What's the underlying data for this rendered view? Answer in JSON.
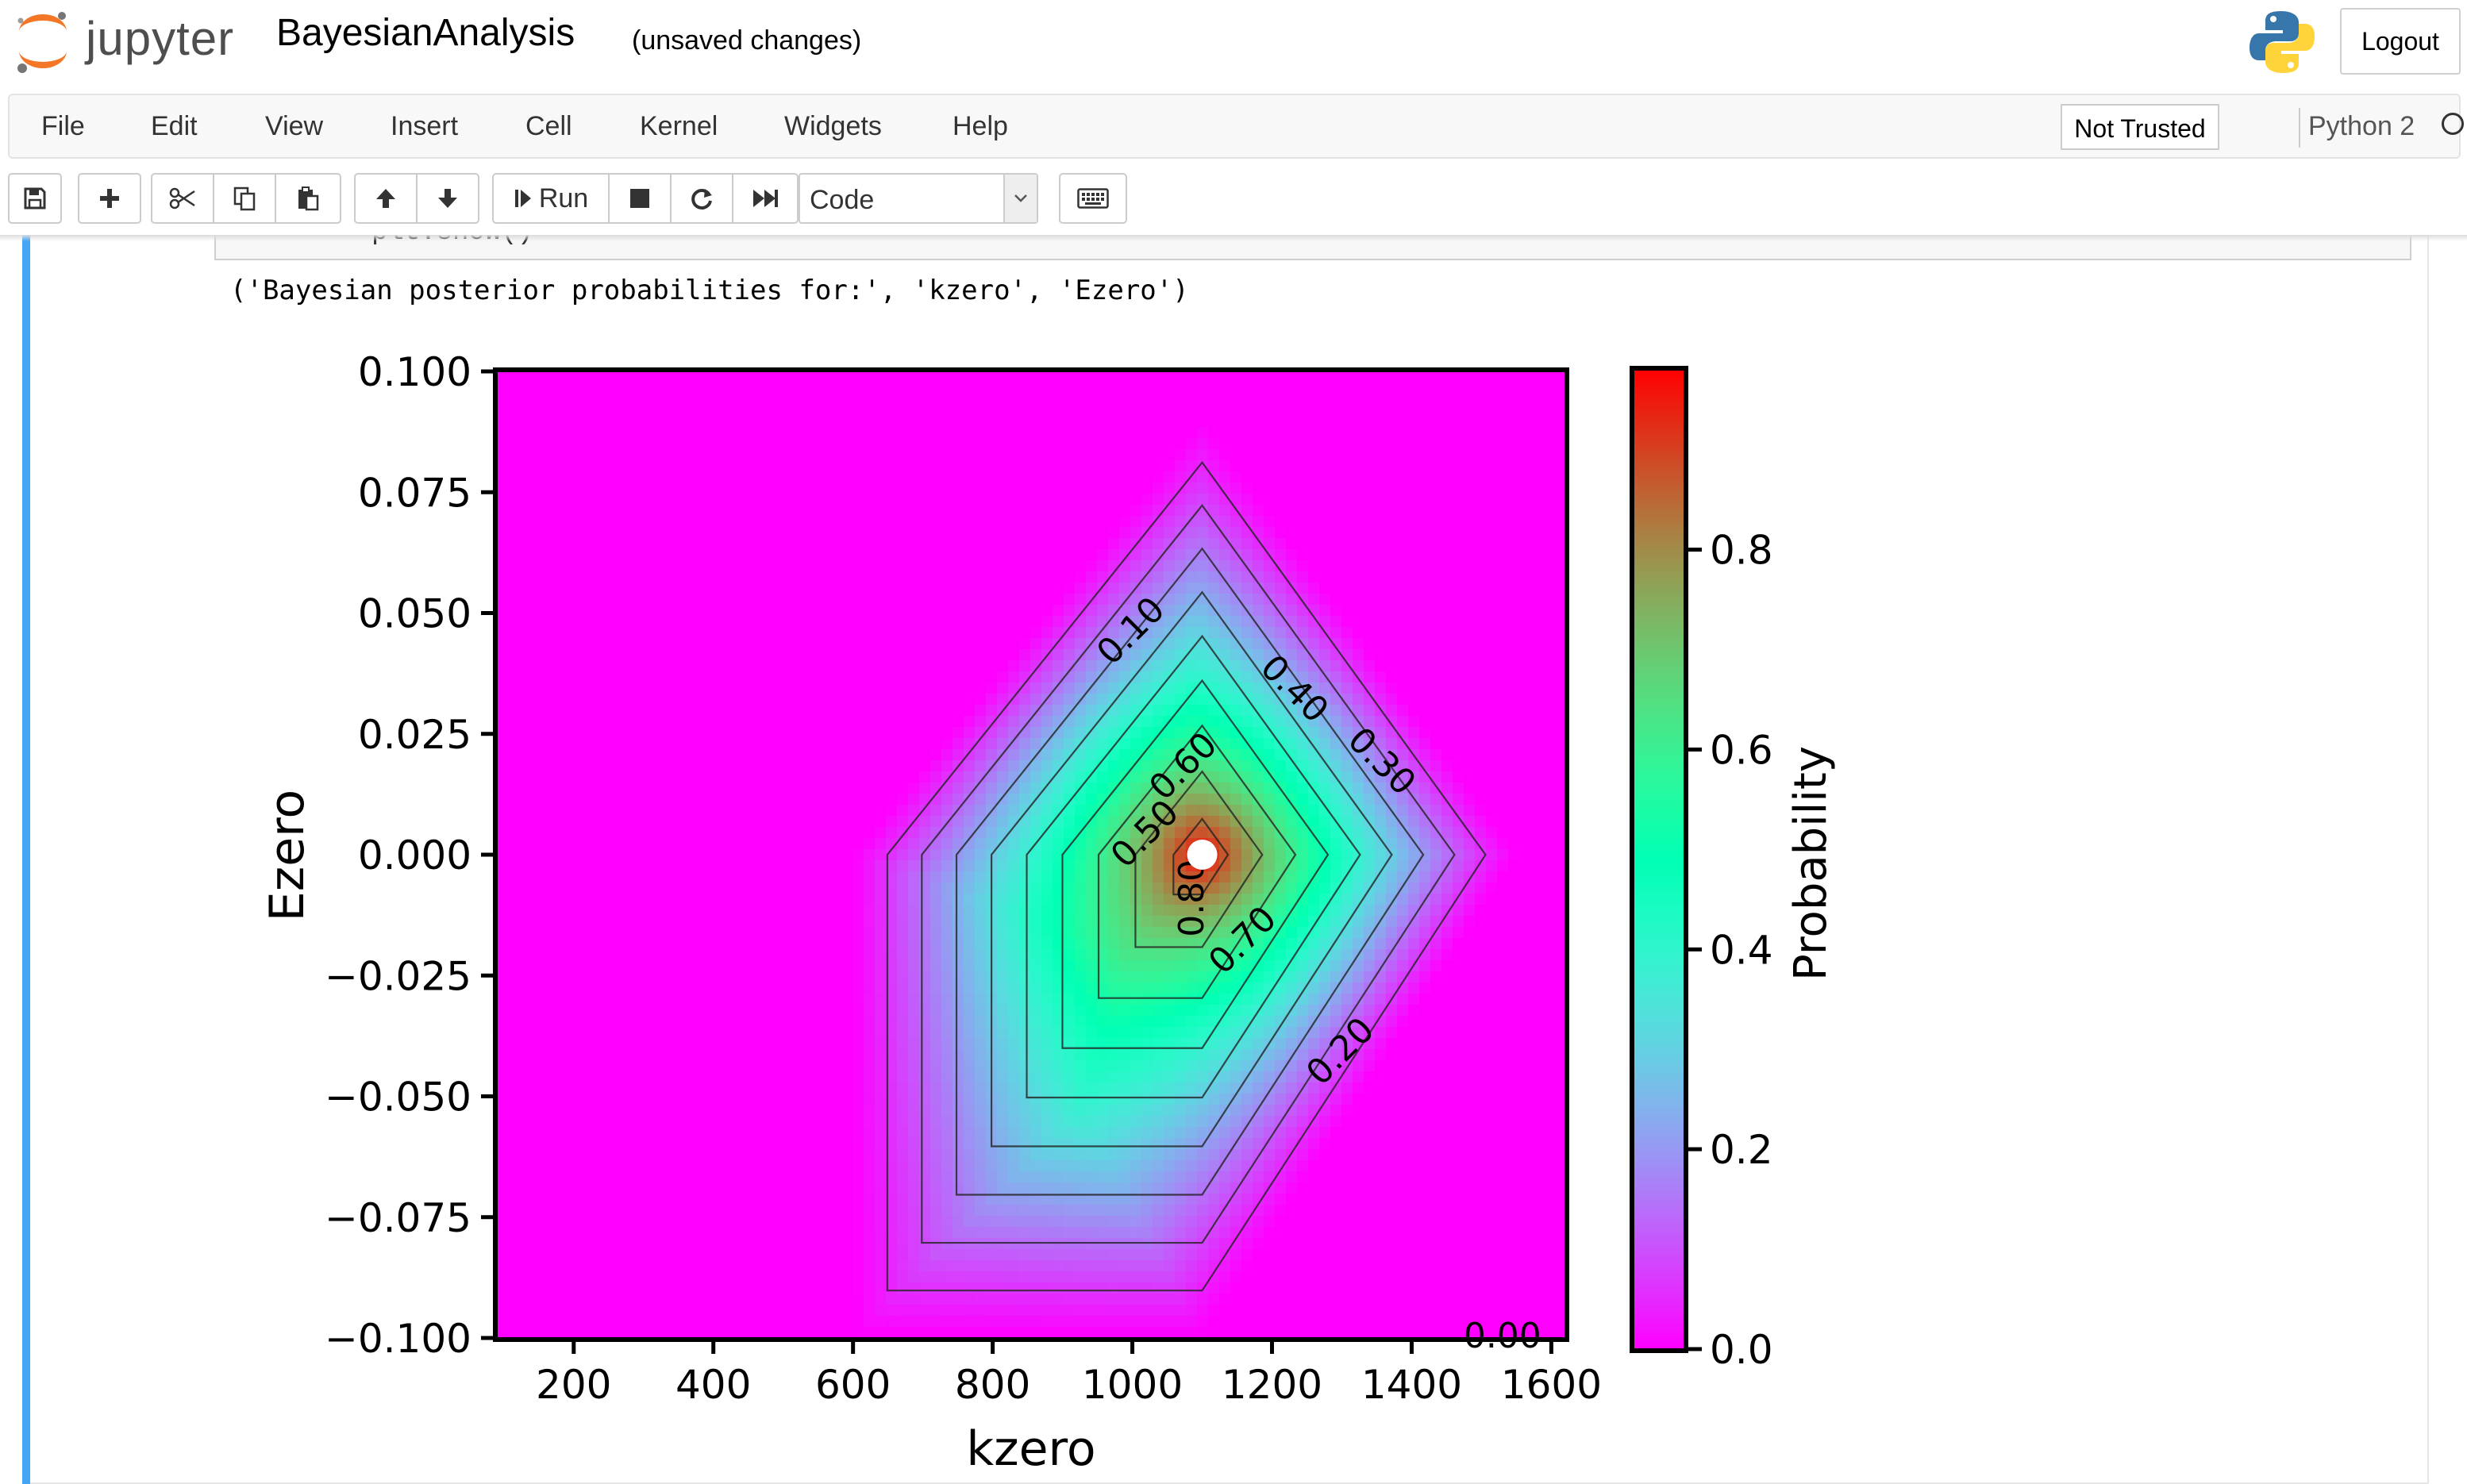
{
  "header": {
    "logo_text": "jupyter",
    "notebook_title": "BayesianAnalysis",
    "save_status": "(unsaved changes)",
    "logout_label": "Logout"
  },
  "menubar": {
    "items": [
      "File",
      "Edit",
      "View",
      "Insert",
      "Cell",
      "Kernel",
      "Widgets",
      "Help"
    ],
    "trust_label": "Not Trusted",
    "kernel_name": "Python 2"
  },
  "toolbar": {
    "run_label": "Run",
    "cell_type": "Code"
  },
  "cell": {
    "code_line": "plt.show()",
    "output_text": "('Bayesian posterior probabilities for:', 'kzero', 'Ezero')"
  },
  "colors": {
    "accent_cell_bar": "#42a5f5",
    "colormap": "rainbow"
  },
  "chart_data": {
    "type": "heatmap",
    "subtype": "filled contour with labeled contour lines",
    "xlabel": "kzero",
    "ylabel": "Ezero",
    "xlim": [
      90,
      1620
    ],
    "ylim": [
      -0.1,
      0.1
    ],
    "xticks": [
      200,
      400,
      600,
      800,
      1000,
      1200,
      1400,
      1600
    ],
    "xtick_labels": [
      "200",
      "400",
      "600",
      "800",
      "1000",
      "1200",
      "1400",
      "1600"
    ],
    "yticks": [
      0.1,
      0.075,
      0.05,
      0.025,
      0.0,
      -0.025,
      -0.05,
      -0.075,
      -0.1
    ],
    "ytick_labels": [
      "0.100",
      "0.075",
      "0.050",
      "0.025",
      "0.000",
      "−0.025",
      "−0.050",
      "−0.075",
      "−0.100"
    ],
    "peak": {
      "x": 1100,
      "y": 0.0,
      "value": 0.97
    },
    "contour_levels": [
      0.1,
      0.2,
      0.3,
      0.4,
      0.5,
      0.6,
      0.7,
      0.8,
      0.9
    ],
    "contour_labels": [
      {
        "text": "0.10",
        "x": 1000,
        "y": 0.046,
        "angle": -45
      },
      {
        "text": "0.40",
        "x": 1230,
        "y": 0.034,
        "angle": 45
      },
      {
        "text": "0.30",
        "x": 1355,
        "y": 0.019,
        "angle": 45
      },
      {
        "text": "0.60",
        "x": 1075,
        "y": 0.018,
        "angle": -45
      },
      {
        "text": "0.50",
        "x": 1020,
        "y": 0.004,
        "angle": -45
      },
      {
        "text": "0.80",
        "x": 1088,
        "y": -0.009,
        "angle": -90
      },
      {
        "text": "0.70",
        "x": 1160,
        "y": -0.018,
        "angle": -45
      },
      {
        "text": "0.20",
        "x": 1300,
        "y": -0.041,
        "angle": -45
      },
      {
        "text": "0.00",
        "x": 1530,
        "y": -0.1,
        "angle": 0
      }
    ],
    "colorbar": {
      "label": "Probability",
      "range": [
        0.0,
        0.98
      ],
      "ticks": [
        0.0,
        0.2,
        0.4,
        0.6,
        0.8
      ],
      "tick_labels": [
        "0.0",
        "0.2",
        "0.4",
        "0.6",
        "0.8"
      ]
    }
  }
}
